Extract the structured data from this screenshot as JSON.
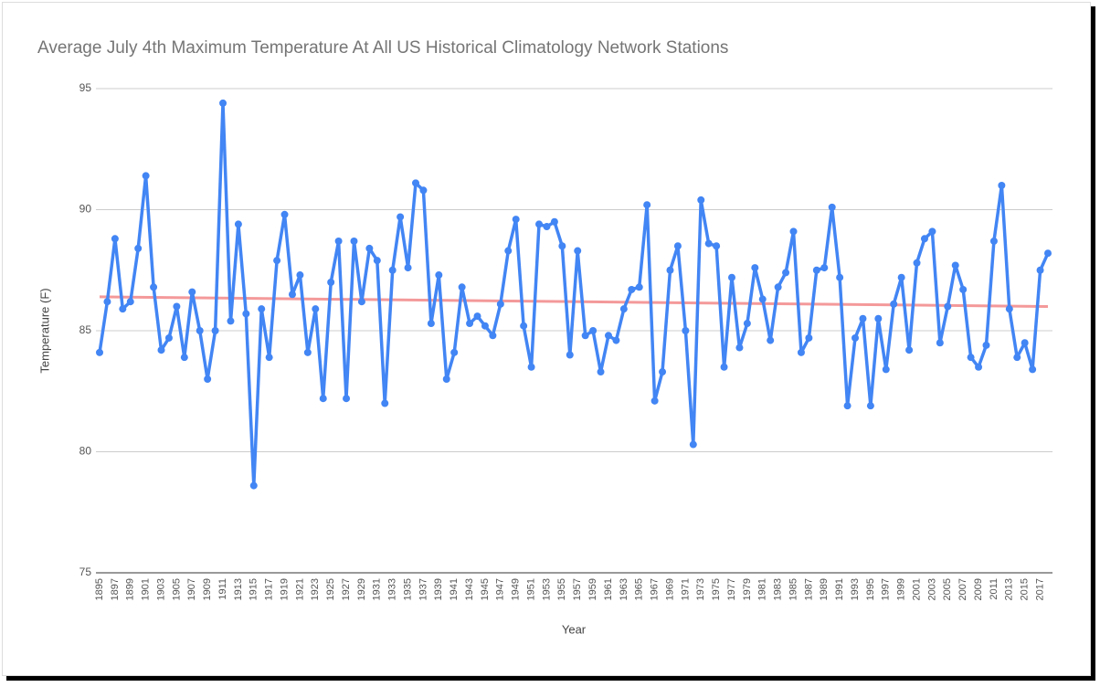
{
  "chart_data": {
    "type": "line",
    "title": "Average July 4th Maximum Temperature At All US Historical Climatology Network Stations",
    "x_label": "Year",
    "y_label": "Temperature (F)",
    "categories": [
      "1895",
      null,
      "1897",
      null,
      "1899",
      null,
      "1901",
      null,
      "1903",
      null,
      "1905",
      null,
      "1907",
      null,
      "1909",
      null,
      "1911",
      null,
      "1913",
      null,
      "1915",
      null,
      "1917",
      null,
      "1919",
      null,
      "1921",
      null,
      "1923",
      null,
      "1925",
      null,
      "1927",
      null,
      "1929",
      null,
      "1931",
      null,
      "1933",
      null,
      "1935",
      null,
      "1937",
      null,
      "1939",
      null,
      "1941",
      null,
      "1943",
      null,
      "1945",
      null,
      "1947",
      null,
      "1949",
      null,
      "1951",
      null,
      "1953",
      null,
      "1955",
      null,
      "1957",
      null,
      "1959",
      null,
      "1961",
      null,
      "1963",
      null,
      "1965",
      null,
      "1967",
      null,
      "1969",
      null,
      "1971",
      null,
      "1973",
      null,
      "1975",
      null,
      "1977",
      null,
      "1979",
      null,
      "1981",
      null,
      "1983",
      null,
      "1985",
      null,
      "1987",
      null,
      "1989",
      null,
      "1991",
      null,
      "1993",
      null,
      "1995",
      null,
      "1997",
      null,
      "1999",
      null,
      "2001",
      null,
      "2003",
      null,
      "2005",
      null,
      "2007",
      null,
      "2009",
      null,
      "2011",
      null,
      "2013",
      null,
      "2015",
      null,
      "2017",
      null
    ],
    "series": [
      {
        "color": "#4285f4",
        "values": [
          84.1,
          86.2,
          88.8,
          85.9,
          86.2,
          88.4,
          91.4,
          86.8,
          84.2,
          84.7,
          86.0,
          83.9,
          86.6,
          85.0,
          83.0,
          85.0,
          94.4,
          85.4,
          89.4,
          85.7,
          78.6,
          85.9,
          83.9,
          87.9,
          89.8,
          86.5,
          87.3,
          84.1,
          85.9,
          82.2,
          87.0,
          88.7,
          82.2,
          88.7,
          86.2,
          88.4,
          87.9,
          82.0,
          87.5,
          89.7,
          87.6,
          91.1,
          90.8,
          85.3,
          87.3,
          83.0,
          84.1,
          86.8,
          85.3,
          85.6,
          85.2,
          84.8,
          86.1,
          88.3,
          89.6,
          85.2,
          83.5,
          89.4,
          89.3,
          89.5,
          88.5,
          84.0,
          88.3,
          84.8,
          85.0,
          83.3,
          84.8,
          84.6,
          85.9,
          86.7,
          86.8,
          90.2,
          82.1,
          83.3,
          87.5,
          88.5,
          85.0,
          80.3,
          90.4,
          88.6,
          88.5,
          83.5,
          87.2,
          84.3,
          85.3,
          87.6,
          86.3,
          84.6,
          86.8,
          87.4,
          89.1,
          84.1,
          84.7,
          87.5,
          87.6,
          90.1,
          87.2,
          81.9,
          84.7,
          85.5,
          81.9,
          85.5,
          83.4,
          86.1,
          87.2,
          84.2,
          87.8,
          88.8,
          89.1,
          84.5,
          86.0,
          87.7,
          86.7,
          83.9,
          83.5,
          84.4,
          88.7,
          91.0,
          85.9,
          83.9,
          84.5,
          83.4,
          87.5,
          88.2
        ]
      }
    ],
    "trendline": {
      "color": "#f4999a",
      "start": 86.4,
      "end": 86.0
    },
    "ylim": [
      75,
      95
    ],
    "yticks": [
      75,
      80,
      85,
      90,
      95
    ],
    "grid": true
  }
}
